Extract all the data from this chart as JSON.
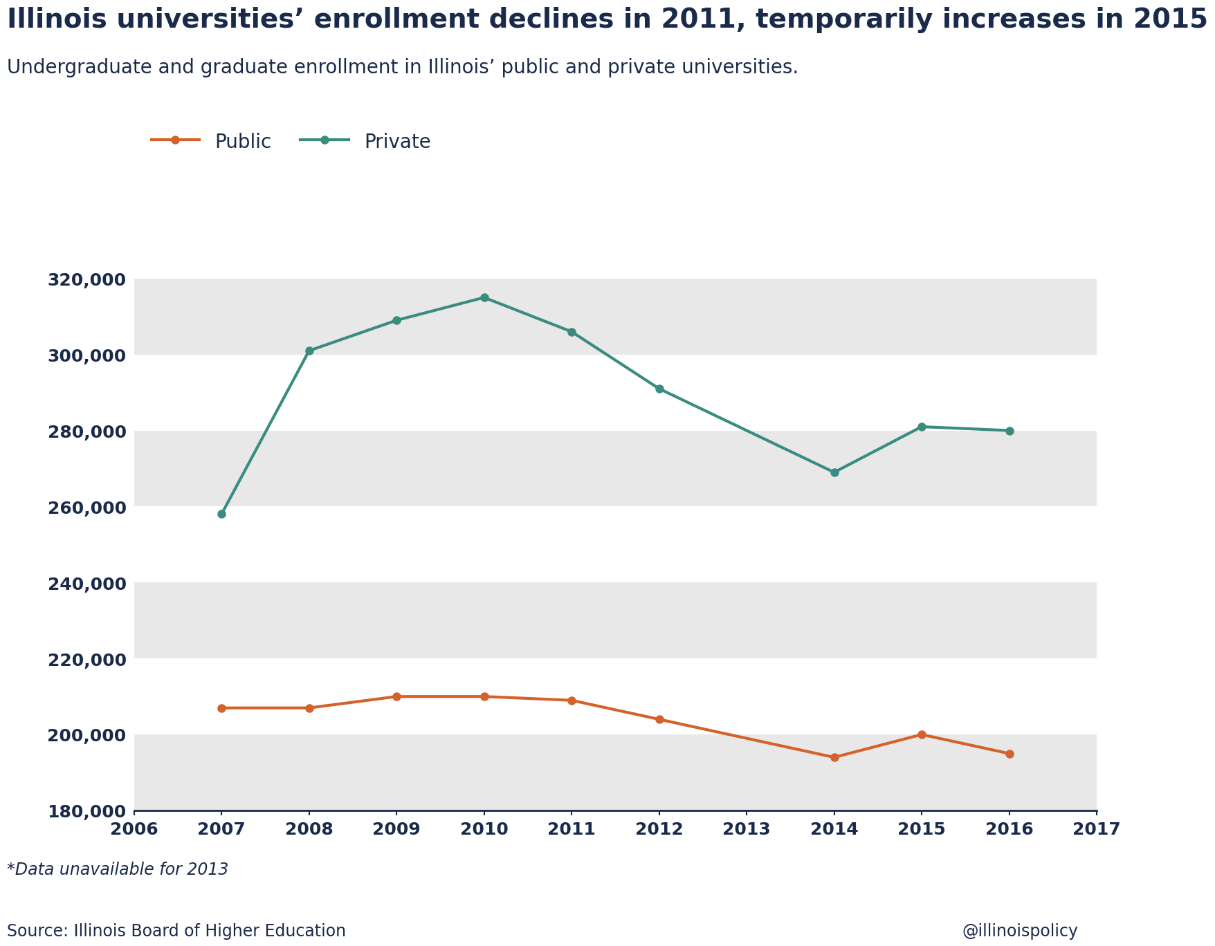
{
  "title": "Illinois universities’ enrollment declines in 2011, temporarily increases in 2015",
  "subtitle": "Undergraduate and graduate enrollment in Illinois’ public and private universities.",
  "source": "Source: Illinois Board of Higher Education",
  "handle": "@illinoispolicy",
  "footnote": "*Data unavailable for 2013",
  "public": {
    "label": "Public",
    "color": "#d4622a",
    "years": [
      2007,
      2008,
      2009,
      2010,
      2011,
      2012,
      2014,
      2015,
      2016
    ],
    "values": [
      207000,
      207000,
      210000,
      210000,
      209000,
      204000,
      194000,
      200000,
      195000
    ]
  },
  "private": {
    "label": "Private",
    "color": "#3a8c80",
    "years": [
      2007,
      2008,
      2009,
      2010,
      2011,
      2012,
      2014,
      2015,
      2016
    ],
    "values": [
      258000,
      301000,
      309000,
      315000,
      306000,
      291000,
      269000,
      281000,
      280000
    ]
  },
  "xlim": [
    2006,
    2017
  ],
  "ylim": [
    180000,
    330000
  ],
  "yticks": [
    180000,
    200000,
    220000,
    240000,
    260000,
    280000,
    300000,
    320000
  ],
  "xticks": [
    2006,
    2007,
    2008,
    2009,
    2010,
    2011,
    2012,
    2013,
    2014,
    2015,
    2016,
    2017
  ],
  "title_color": "#1a2a4a",
  "subtitle_color": "#1a2a4a",
  "axis_color": "#1a2a4a",
  "bg_color": "#ffffff",
  "band_color": "#e8e8e8",
  "line_width": 3.0,
  "marker_size": 8
}
